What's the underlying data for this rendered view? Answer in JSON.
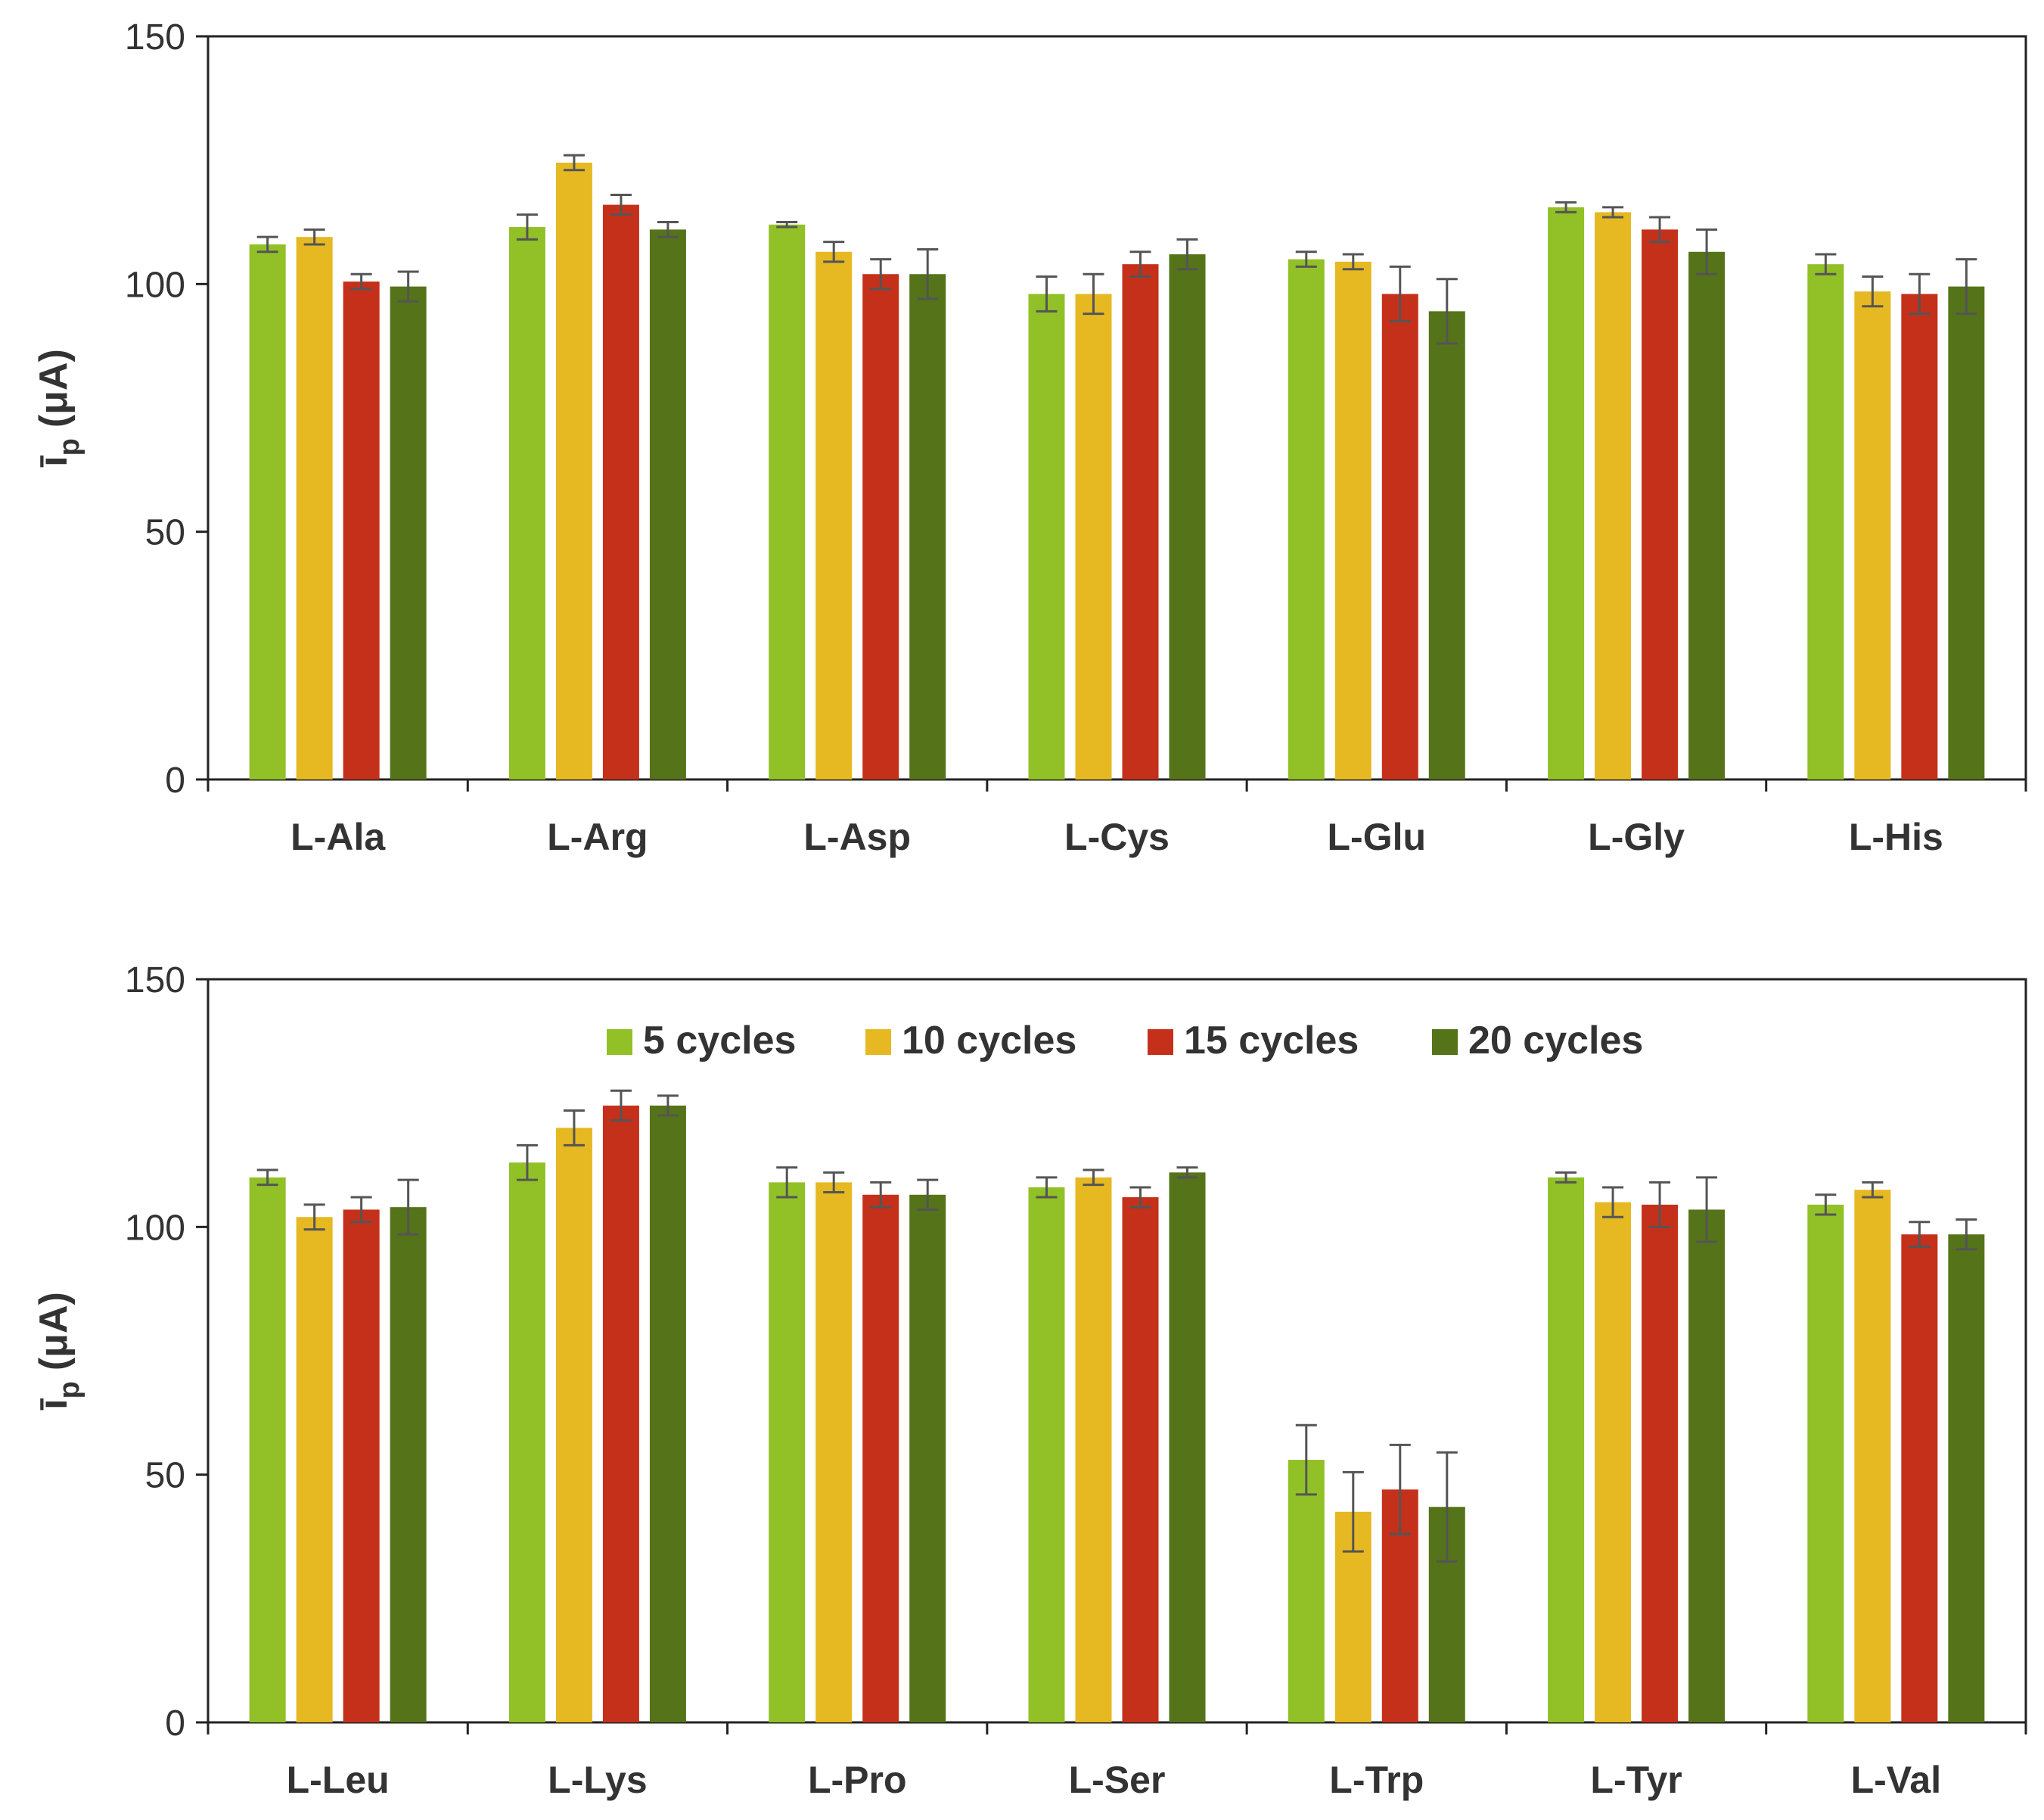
{
  "colors": {
    "series": [
      "#92c027",
      "#e6b822",
      "#c5301b",
      "#557319"
    ],
    "error_bar": "#555555",
    "axis": "#222222"
  },
  "legend": {
    "placement": "top-center (bottom panel)"
  },
  "chart_data": [
    {
      "type": "bar",
      "categories": [
        "L-Ala",
        "L-Arg",
        "L-Asp",
        "L-Cys",
        "L-Glu",
        "L-Gly",
        "L-His"
      ],
      "ylabel_main": "ī",
      "ylabel_sub": "p",
      "ylabel_unit": "(μA)",
      "ylim": [
        0,
        150
      ],
      "yticks": [
        "0",
        "50",
        "100",
        "150"
      ],
      "grid": false,
      "series": [
        {
          "name": "5 cycles",
          "values": [
            108,
            111.5,
            112,
            98,
            105,
            115.5,
            104
          ],
          "errors": [
            1.5,
            2.5,
            0.5,
            3.5,
            1.5,
            1,
            2
          ]
        },
        {
          "name": "10 cycles",
          "values": [
            109.5,
            124.5,
            106.5,
            98,
            104.5,
            114.5,
            98.5
          ],
          "errors": [
            1.5,
            1.5,
            2,
            4,
            1.5,
            1,
            3
          ]
        },
        {
          "name": "15 cycles",
          "values": [
            100.5,
            116,
            102,
            104,
            98,
            111,
            98
          ],
          "errors": [
            1.5,
            2,
            3,
            2.5,
            5.5,
            2.5,
            4
          ]
        },
        {
          "name": "20 cycles",
          "values": [
            99.5,
            111,
            102,
            106,
            94.5,
            106.5,
            99.5
          ],
          "errors": [
            3,
            1.5,
            5,
            3,
            6.5,
            4.5,
            5.5
          ]
        }
      ]
    },
    {
      "type": "bar",
      "categories": [
        "L-Leu",
        "L-Lys",
        "L-Pro",
        "L-Ser",
        "L-Trp",
        "L-Tyr",
        "L-Val"
      ],
      "ylabel_main": "ī",
      "ylabel_sub": "p",
      "ylabel_unit": "(μA)",
      "ylim": [
        0,
        150
      ],
      "yticks": [
        "0",
        "50",
        "100",
        "150"
      ],
      "grid": false,
      "series": [
        {
          "name": "5 cycles",
          "values": [
            110,
            113,
            109,
            108,
            53,
            110,
            104.5
          ],
          "errors": [
            1.5,
            3.5,
            3,
            2,
            7,
            1,
            2
          ]
        },
        {
          "name": "10 cycles",
          "values": [
            102,
            120,
            109,
            110,
            42.5,
            105,
            107.5
          ],
          "errors": [
            2.5,
            3.5,
            2,
            1.5,
            8,
            3,
            1.5
          ]
        },
        {
          "name": "15 cycles",
          "values": [
            103.5,
            124.5,
            106.5,
            106,
            47,
            104.5,
            98.5
          ],
          "errors": [
            2.5,
            3,
            2.5,
            2,
            9,
            4.5,
            2.5
          ]
        },
        {
          "name": "20 cycles",
          "values": [
            104,
            124.5,
            106.5,
            111,
            43.5,
            103.5,
            98.5
          ],
          "errors": [
            5.5,
            2,
            3,
            1,
            11,
            6.5,
            3
          ]
        }
      ]
    }
  ]
}
